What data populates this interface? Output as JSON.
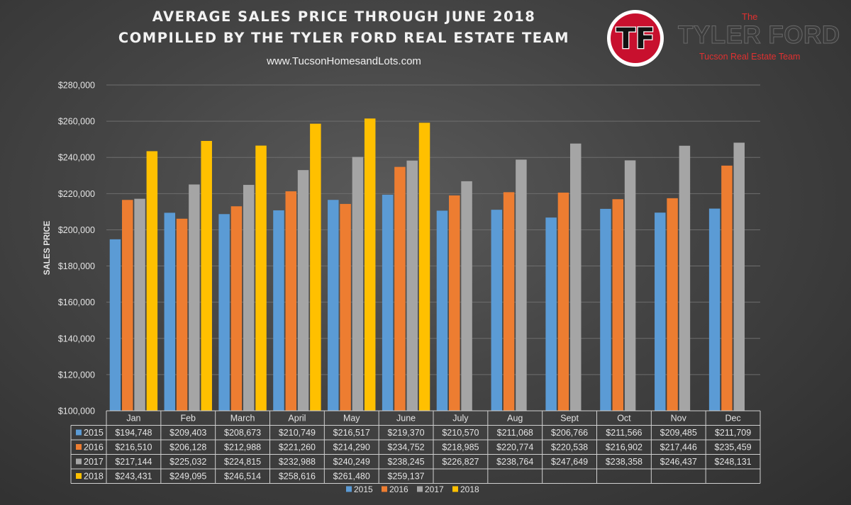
{
  "header": {
    "title_line1": "AVERAGE SALES PRICE THROUGH JUNE 2018",
    "title_line2": "COMPILLED BY THE TYLER FORD REAL ESTATE TEAM",
    "website": "www.TucsonHomesandLots.com"
  },
  "brand": {
    "logo_text": "TF",
    "the": "The",
    "name": "TYLER FORD",
    "team": "Tucson Real Estate Team"
  },
  "chart_data": {
    "type": "bar",
    "ylabel": "SALES PRICE",
    "xlabel": "",
    "ylim": [
      100000,
      280000
    ],
    "y_ticks": [
      "$100,000",
      "$120,000",
      "$140,000",
      "$160,000",
      "$180,000",
      "$200,000",
      "$220,000",
      "$240,000",
      "$260,000",
      "$280,000"
    ],
    "categories": [
      "Jan",
      "Feb",
      "March",
      "April",
      "May",
      "June",
      "July",
      "Aug",
      "Sept",
      "Oct",
      "Nov",
      "Dec"
    ],
    "series": [
      {
        "name": "2015",
        "color": "#5b9bd5",
        "values": [
          194748,
          209403,
          208673,
          210749,
          216517,
          219370,
          210570,
          211068,
          206766,
          211566,
          209485,
          211709
        ],
        "labels": [
          "$194,748",
          "$209,403",
          "$208,673",
          "$210,749",
          "$216,517",
          "$219,370",
          "$210,570",
          "$211,068",
          "$206,766",
          "$211,566",
          "$209,485",
          "$211,709"
        ]
      },
      {
        "name": "2016",
        "color": "#ed7d31",
        "values": [
          216510,
          206128,
          212988,
          221260,
          214290,
          234752,
          218985,
          220774,
          220538,
          216902,
          217446,
          235459
        ],
        "labels": [
          "$216,510",
          "$206,128",
          "$212,988",
          "$221,260",
          "$214,290",
          "$234,752",
          "$218,985",
          "$220,774",
          "$220,538",
          "$216,902",
          "$217,446",
          "$235,459"
        ]
      },
      {
        "name": "2017",
        "color": "#a5a5a5",
        "values": [
          217144,
          225032,
          224815,
          232988,
          240249,
          238245,
          226827,
          238764,
          247649,
          238358,
          246437,
          248131
        ],
        "labels": [
          "$217,144",
          "$225,032",
          "$224,815",
          "$232,988",
          "$240,249",
          "$238,245",
          "$226,827",
          "$238,764",
          "$247,649",
          "$238,358",
          "$246,437",
          "$248,131"
        ]
      },
      {
        "name": "2018",
        "color": "#ffc000",
        "values": [
          243431,
          249095,
          246514,
          258616,
          261480,
          259137,
          null,
          null,
          null,
          null,
          null,
          null
        ],
        "labels": [
          "$243,431",
          "$249,095",
          "$246,514",
          "$258,616",
          "$261,480",
          "$259,137",
          "",
          "",
          "",
          "",
          "",
          ""
        ]
      }
    ],
    "grid": true,
    "legend": "bottom",
    "data_table": true
  }
}
